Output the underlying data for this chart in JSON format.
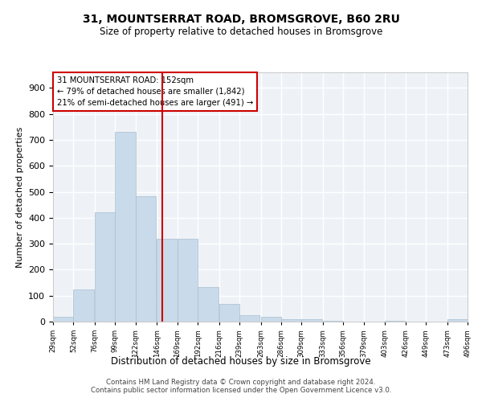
{
  "title1": "31, MOUNTSERRAT ROAD, BROMSGROVE, B60 2RU",
  "title2": "Size of property relative to detached houses in Bromsgrove",
  "xlabel": "Distribution of detached houses by size in Bromsgrove",
  "ylabel": "Number of detached properties",
  "bar_color": "#c9daea",
  "bar_edge_color": "#aabfcf",
  "background_color": "#eef2f7",
  "grid_color": "#ffffff",
  "bins_left": [
    29,
    52,
    76,
    99,
    122,
    146,
    169,
    192,
    216,
    239,
    263,
    286,
    309,
    333,
    356,
    379,
    403,
    426,
    449,
    473
  ],
  "bin_labels": [
    "29sqm",
    "52sqm",
    "76sqm",
    "99sqm",
    "122sqm",
    "146sqm",
    "169sqm",
    "192sqm",
    "216sqm",
    "239sqm",
    "263sqm",
    "286sqm",
    "309sqm",
    "333sqm",
    "356sqm",
    "379sqm",
    "403sqm",
    "426sqm",
    "449sqm",
    "473sqm",
    "496sqm"
  ],
  "values": [
    20,
    123,
    420,
    730,
    483,
    318,
    318,
    133,
    67,
    25,
    20,
    10,
    8,
    3,
    0,
    0,
    2,
    0,
    0,
    8
  ],
  "property_size": 152,
  "property_line_color": "#cc0000",
  "annotation_box_color": "#cc0000",
  "annotation_line1": "31 MOUNTSERRAT ROAD: 152sqm",
  "annotation_line2": "← 79% of detached houses are smaller (1,842)",
  "annotation_line3": "21% of semi-detached houses are larger (491) →",
  "ylim": [
    0,
    960
  ],
  "yticks": [
    0,
    100,
    200,
    300,
    400,
    500,
    600,
    700,
    800,
    900
  ],
  "footer1": "Contains HM Land Registry data © Crown copyright and database right 2024.",
  "footer2": "Contains public sector information licensed under the Open Government Licence v3.0."
}
